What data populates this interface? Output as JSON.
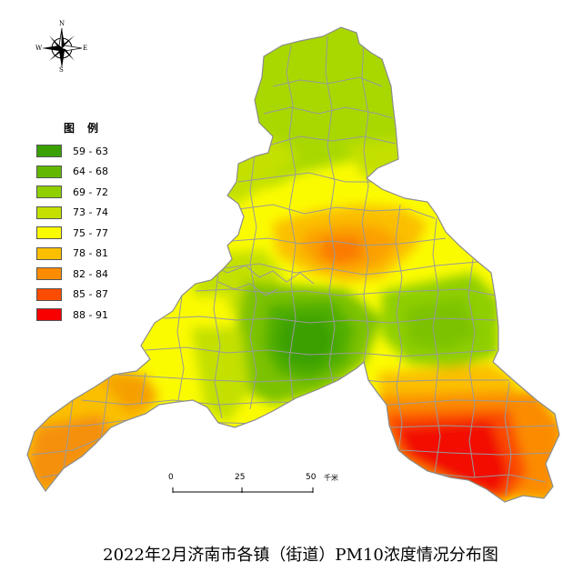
{
  "map": {
    "caption": "2022年2月济南市各镇（街道）PM10浓度情况分布图",
    "legend": {
      "title": "图例",
      "items": [
        {
          "label": "59 - 63",
          "color": "#3aa000"
        },
        {
          "label": "64 - 68",
          "color": "#62b800"
        },
        {
          "label": "69 - 72",
          "color": "#8fcf00"
        },
        {
          "label": "73 - 74",
          "color": "#c3e000"
        },
        {
          "label": "75 - 77",
          "color": "#fbfb00"
        },
        {
          "label": "78 - 81",
          "color": "#fbbf00"
        },
        {
          "label": "82 - 84",
          "color": "#fb8c00"
        },
        {
          "label": "85 - 87",
          "color": "#fb4c00"
        },
        {
          "label": "88 - 91",
          "color": "#f60000"
        }
      ]
    },
    "compass": {
      "n": "N",
      "s": "S",
      "e": "E",
      "w": "W"
    },
    "scale_bar": {
      "ticks": [
        "0",
        "25",
        "50"
      ],
      "unit": "千米"
    },
    "boundary_color": "#9a9a9a"
  }
}
